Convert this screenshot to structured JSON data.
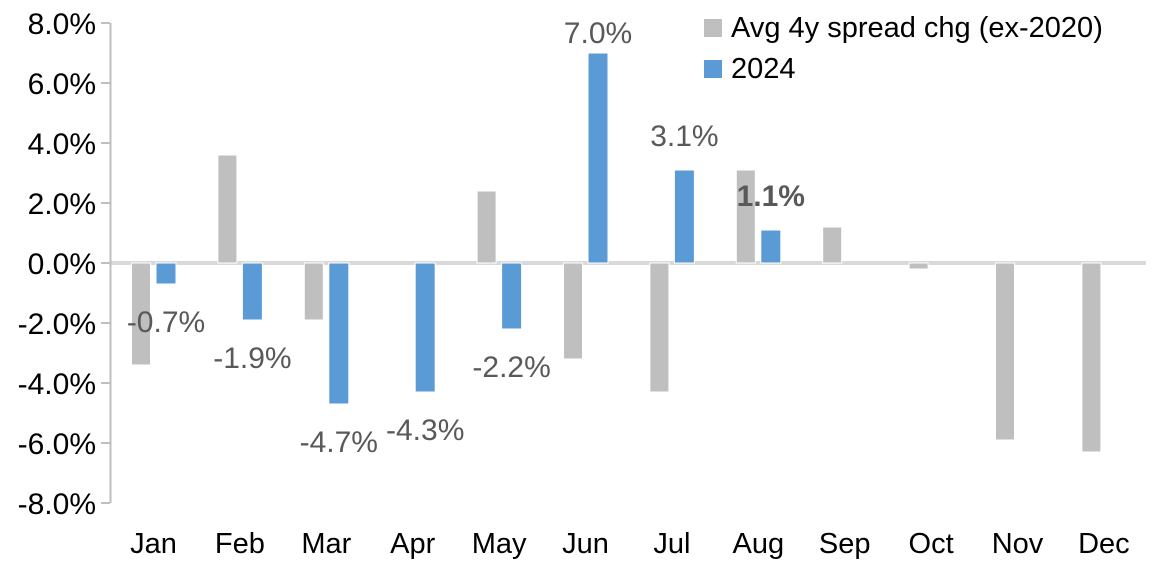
{
  "chart_data": {
    "type": "bar",
    "title": "",
    "xlabel": "",
    "ylabel": "",
    "categories": [
      "Jan",
      "Feb",
      "Mar",
      "Apr",
      "May",
      "Jun",
      "Jul",
      "Aug",
      "Sep",
      "Oct",
      "Nov",
      "Dec"
    ],
    "series": [
      {
        "name": "Avg 4y spread chg (ex-2020)",
        "color": "#bfbfbf",
        "values": [
          -3.4,
          3.6,
          -1.9,
          0.0,
          2.4,
          -3.2,
          -4.3,
          3.1,
          1.2,
          -0.2,
          -5.9,
          -6.3
        ]
      },
      {
        "name": "2024",
        "color": "#5b9bd5",
        "values": [
          -0.7,
          -1.9,
          -4.7,
          -4.3,
          -2.2,
          7.0,
          3.1,
          1.1,
          null,
          null,
          null,
          null
        ]
      }
    ],
    "data_labels": {
      "series": "2024",
      "labels": [
        "-0.7%",
        "-1.9%",
        "-4.7%",
        "-4.3%",
        "-2.2%",
        "7.0%",
        "3.1%",
        "1.1%"
      ],
      "colors": [
        "#595959",
        "#595959",
        "#595959",
        "#595959",
        "#595959",
        "#595959",
        "#595959",
        "#ff0000"
      ],
      "bold": [
        false,
        false,
        false,
        false,
        false,
        false,
        false,
        true
      ]
    },
    "y_axis": {
      "ticks": [
        "8.0%",
        "6.0%",
        "4.0%",
        "2.0%",
        "0.0%",
        "-2.0%",
        "-4.0%",
        "-6.0%",
        "-8.0%"
      ],
      "min": -8,
      "max": 8,
      "step": 2
    },
    "legend": {
      "position": "top-right",
      "entries": [
        {
          "label": "Avg 4y spread chg (ex-2020)",
          "color": "#bfbfbf"
        },
        {
          "label": "2024",
          "color": "#5b9bd5"
        }
      ]
    },
    "grid": false,
    "colors": {
      "axis_line": "#bfbfbf",
      "zero_line": "#d9d9d9",
      "tick_text": "#000000",
      "label_text": "#595959",
      "highlight_label": "#ff0000"
    }
  }
}
